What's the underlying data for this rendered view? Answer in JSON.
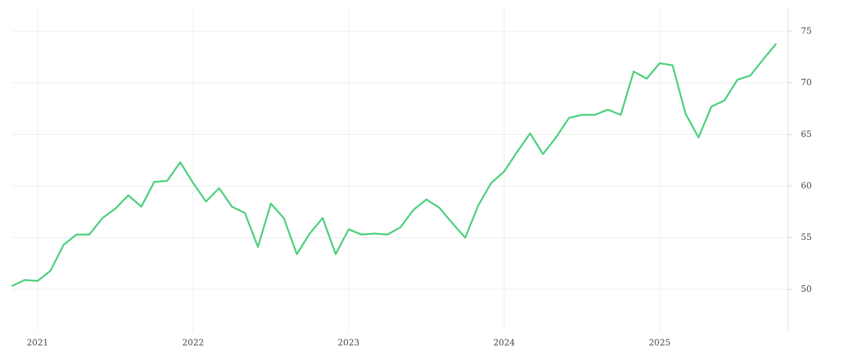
{
  "chart_data": {
    "type": "line",
    "x": [
      2020.833,
      2020.917,
      2021,
      2021.083,
      2021.167,
      2021.25,
      2021.333,
      2021.417,
      2021.5,
      2021.583,
      2021.667,
      2021.75,
      2021.833,
      2021.917,
      2022,
      2022.083,
      2022.167,
      2022.25,
      2022.333,
      2022.417,
      2022.5,
      2022.583,
      2022.667,
      2022.75,
      2022.833,
      2022.917,
      2023,
      2023.083,
      2023.167,
      2023.25,
      2023.333,
      2023.417,
      2023.5,
      2023.583,
      2023.667,
      2023.75,
      2023.833,
      2023.917,
      2024,
      2024.083,
      2024.167,
      2024.25,
      2024.333,
      2024.417,
      2024.5,
      2024.583,
      2024.667,
      2024.75,
      2024.833,
      2024.917,
      2025,
      2025.083,
      2025.167,
      2025.25,
      2025.333,
      2025.417,
      2025.5,
      2025.583,
      2025.667,
      2025.75
    ],
    "series": [
      {
        "color": "#4cd07d",
        "values": [
          50.3,
          50.9,
          50.8,
          51.8,
          54.3,
          55.3,
          55.3,
          56.9,
          57.8,
          59.1,
          58.0,
          60.4,
          60.5,
          62.3,
          60.3,
          58.5,
          59.8,
          58.0,
          57.4,
          54.1,
          58.3,
          56.9,
          53.4,
          55.4,
          56.9,
          53.4,
          55.8,
          55.3,
          55.4,
          55.3,
          56.0,
          57.7,
          58.7,
          57.9,
          56.4,
          55.0,
          58.1,
          60.3,
          61.4,
          63.3,
          65.1,
          63.1,
          64.7,
          66.6,
          66.9,
          66.9,
          67.4,
          66.9,
          71.1,
          70.4,
          71.9,
          71.7,
          67.0,
          64.7,
          67.7,
          68.3,
          70.3,
          70.7,
          72.3,
          73.8
        ]
      }
    ],
    "xlim": [
      2020.836,
      2025.826
    ],
    "xticks": [
      2021,
      2022,
      2023,
      2024,
      2025
    ],
    "ylim": [
      45.9,
      77.2
    ],
    "yticks": [
      50,
      55,
      60,
      65,
      70,
      75
    ],
    "grid": true
  }
}
